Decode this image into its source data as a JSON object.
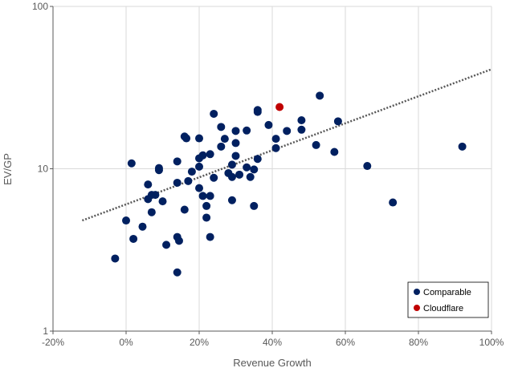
{
  "chart_data": {
    "type": "scatter",
    "title": "",
    "xlabel": "Revenue Growth",
    "ylabel": "EV/GP",
    "xlim": [
      -20,
      100
    ],
    "ylim": [
      1,
      100
    ],
    "yscale": "log",
    "x_unit": "%",
    "x_ticks": [
      "-20%",
      "0%",
      "20%",
      "40%",
      "60%",
      "80%",
      "100%"
    ],
    "x_tick_values": [
      -20,
      0,
      20,
      40,
      60,
      80,
      100
    ],
    "y_ticks": [
      "1",
      "10",
      "100"
    ],
    "y_tick_values": [
      1,
      10,
      100
    ],
    "grid": "vertical at x ticks, horizontal at y ticks",
    "legend_position": "bottom-right",
    "series": [
      {
        "name": "Comparable",
        "color": "#002060",
        "points": [
          [
            -3,
            2.8
          ],
          [
            0,
            4.8
          ],
          [
            1.5,
            10.8
          ],
          [
            2,
            3.7
          ],
          [
            4.5,
            4.4
          ],
          [
            6,
            8.0
          ],
          [
            6,
            6.5
          ],
          [
            7,
            5.4
          ],
          [
            7,
            6.9
          ],
          [
            8,
            6.9
          ],
          [
            9,
            10.1
          ],
          [
            9,
            9.8
          ],
          [
            10,
            6.3
          ],
          [
            11,
            3.4
          ],
          [
            14,
            11.1
          ],
          [
            14,
            8.2
          ],
          [
            14,
            3.8
          ],
          [
            14.5,
            3.6
          ],
          [
            14,
            2.3
          ],
          [
            16,
            15.8
          ],
          [
            16.5,
            15.4
          ],
          [
            16,
            5.6
          ],
          [
            17,
            8.4
          ],
          [
            18,
            9.6
          ],
          [
            20,
            11.6
          ],
          [
            20,
            15.4
          ],
          [
            20,
            10.3
          ],
          [
            20,
            7.6
          ],
          [
            21,
            12.1
          ],
          [
            21,
            6.8
          ],
          [
            22,
            5.0
          ],
          [
            22,
            5.9
          ],
          [
            23,
            12.3
          ],
          [
            23,
            6.8
          ],
          [
            23,
            3.8
          ],
          [
            24,
            21.8
          ],
          [
            24,
            8.8
          ],
          [
            26,
            18.1
          ],
          [
            26,
            13.7
          ],
          [
            27,
            15.3
          ],
          [
            28,
            9.4
          ],
          [
            29,
            10.6
          ],
          [
            29,
            8.9
          ],
          [
            29,
            6.4
          ],
          [
            30,
            17.1
          ],
          [
            30,
            14.4
          ],
          [
            30,
            12.0
          ],
          [
            31,
            9.2
          ],
          [
            33,
            17.2
          ],
          [
            33,
            10.2
          ],
          [
            34,
            8.9
          ],
          [
            35,
            9.9
          ],
          [
            35,
            5.9
          ],
          [
            36,
            23.0
          ],
          [
            36,
            22.4
          ],
          [
            36,
            11.5
          ],
          [
            39,
            18.6
          ],
          [
            41,
            15.3
          ],
          [
            41,
            13.4
          ],
          [
            44,
            17.1
          ],
          [
            48,
            19.9
          ],
          [
            48,
            17.4
          ],
          [
            52,
            14.0
          ],
          [
            53,
            28.2
          ],
          [
            57,
            12.7
          ],
          [
            58,
            19.6
          ],
          [
            66,
            10.4
          ],
          [
            73,
            6.2
          ],
          [
            92,
            13.7
          ]
        ]
      },
      {
        "name": "Cloudflare",
        "color": "#C00000",
        "points": [
          [
            42,
            24
          ]
        ]
      }
    ],
    "trendline": {
      "type": "exponential",
      "style": "dotted",
      "color": "#595959",
      "x": [
        -12,
        100
      ],
      "y": [
        4.8,
        41
      ]
    }
  }
}
